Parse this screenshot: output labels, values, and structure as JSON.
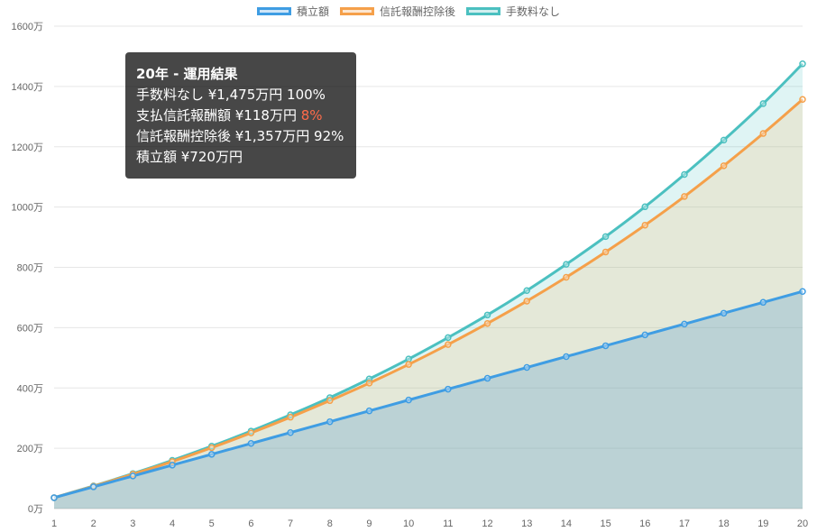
{
  "chart_data": {
    "type": "area",
    "x": [
      1,
      2,
      3,
      4,
      5,
      6,
      7,
      8,
      9,
      10,
      11,
      12,
      13,
      14,
      15,
      16,
      17,
      18,
      19,
      20
    ],
    "yticks": [
      "0万",
      "200万",
      "400万",
      "600万",
      "800万",
      "1000万",
      "1200万",
      "1400万",
      "1600万"
    ],
    "ylim": [
      0,
      1600
    ],
    "grid": true,
    "legend_position": "top",
    "series": [
      {
        "name": "積立額",
        "color": "#3f9de3",
        "fill": "rgba(93,158,205,0.30)",
        "values": [
          36,
          72,
          108,
          144,
          180,
          216,
          252,
          288,
          324,
          360,
          396,
          432,
          468,
          504,
          540,
          576,
          612,
          648,
          684,
          720
        ]
      },
      {
        "name": "信託報酬控除後",
        "color": "#f5a04a",
        "fill": "rgba(245,190,120,0.22)",
        "values": [
          36,
          74,
          114,
          156,
          202,
          251,
          303,
          358,
          416,
          478,
          544,
          614,
          688,
          767,
          851,
          940,
          1035,
          1137,
          1244,
          1357
        ]
      },
      {
        "name": "手数料なし",
        "color": "#4bc0c0",
        "fill": "rgba(75,192,192,0.18)",
        "values": [
          36,
          75,
          116,
          160,
          207,
          257,
          311,
          368,
          430,
          496,
          567,
          642,
          723,
          810,
          902,
          1001,
          1108,
          1222,
          1343,
          1475
        ]
      }
    ]
  },
  "tooltip": {
    "title": "20年 - 運用結果",
    "line1": "手数料なし ¥1,475万円 100%",
    "line2_text": "支払信託報酬額 ¥118万円 ",
    "line2_pct": "8%",
    "line3": "信託報酬控除後 ¥1,357万円 92%",
    "line4": "積立額 ¥720万円"
  }
}
